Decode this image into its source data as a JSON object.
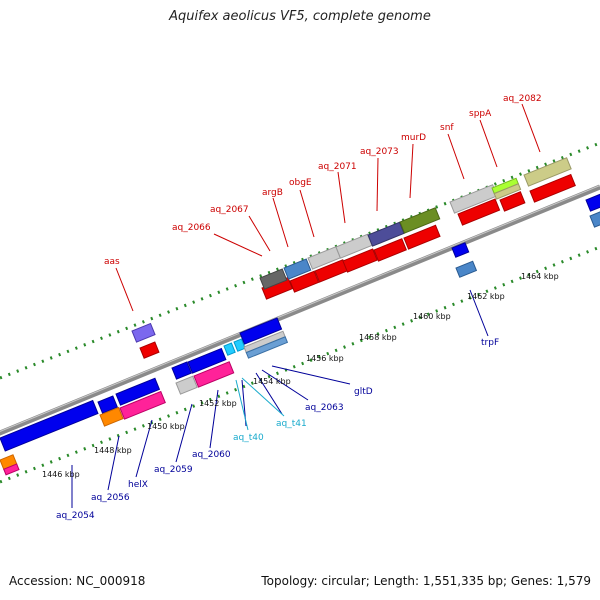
{
  "title": "Aquifex aeolicus VF5, complete genome",
  "accession": "Accession: NC_000918",
  "summary": "Topology: circular; Length: 1,551,335 bp; Genes: 1,579",
  "colors": {
    "forward_label": "#cc0000",
    "reverse_label": "#000099",
    "rna_label": "#19aacc",
    "backbone": "#888888",
    "tick": "#2a8a2a"
  },
  "scale_labels": [
    {
      "text": "1446 kbp",
      "pos": 1446
    },
    {
      "text": "1448 kbp",
      "pos": 1448
    },
    {
      "text": "1450 kbp",
      "pos": 1450
    },
    {
      "text": "1452 kbp",
      "pos": 1452
    },
    {
      "text": "1454 kbp",
      "pos": 1454
    },
    {
      "text": "1456 kbp",
      "pos": 1456
    },
    {
      "text": "1458 kbp",
      "pos": 1458
    },
    {
      "text": "1460 kbp",
      "pos": 1460
    },
    {
      "text": "1462 kbp",
      "pos": 1462
    },
    {
      "text": "1464 kbp",
      "pos": 1464
    }
  ],
  "forward_labels": [
    {
      "text": "aas"
    },
    {
      "text": "aq_2066"
    },
    {
      "text": "aq_2067"
    },
    {
      "text": "argB"
    },
    {
      "text": "obgE"
    },
    {
      "text": "aq_2071"
    },
    {
      "text": "aq_2073"
    },
    {
      "text": "murD"
    },
    {
      "text": "snf"
    },
    {
      "text": "sppA"
    },
    {
      "text": "aq_2082"
    }
  ],
  "reverse_labels": [
    {
      "text": "aq_2054"
    },
    {
      "text": "aq_2056"
    },
    {
      "text": "helX"
    },
    {
      "text": "aq_2059"
    },
    {
      "text": "aq_2060"
    },
    {
      "text": "aq_t40"
    },
    {
      "text": "aq_t41"
    },
    {
      "text": "aq_2063"
    },
    {
      "text": "gltD"
    },
    {
      "text": "trpF"
    }
  ]
}
